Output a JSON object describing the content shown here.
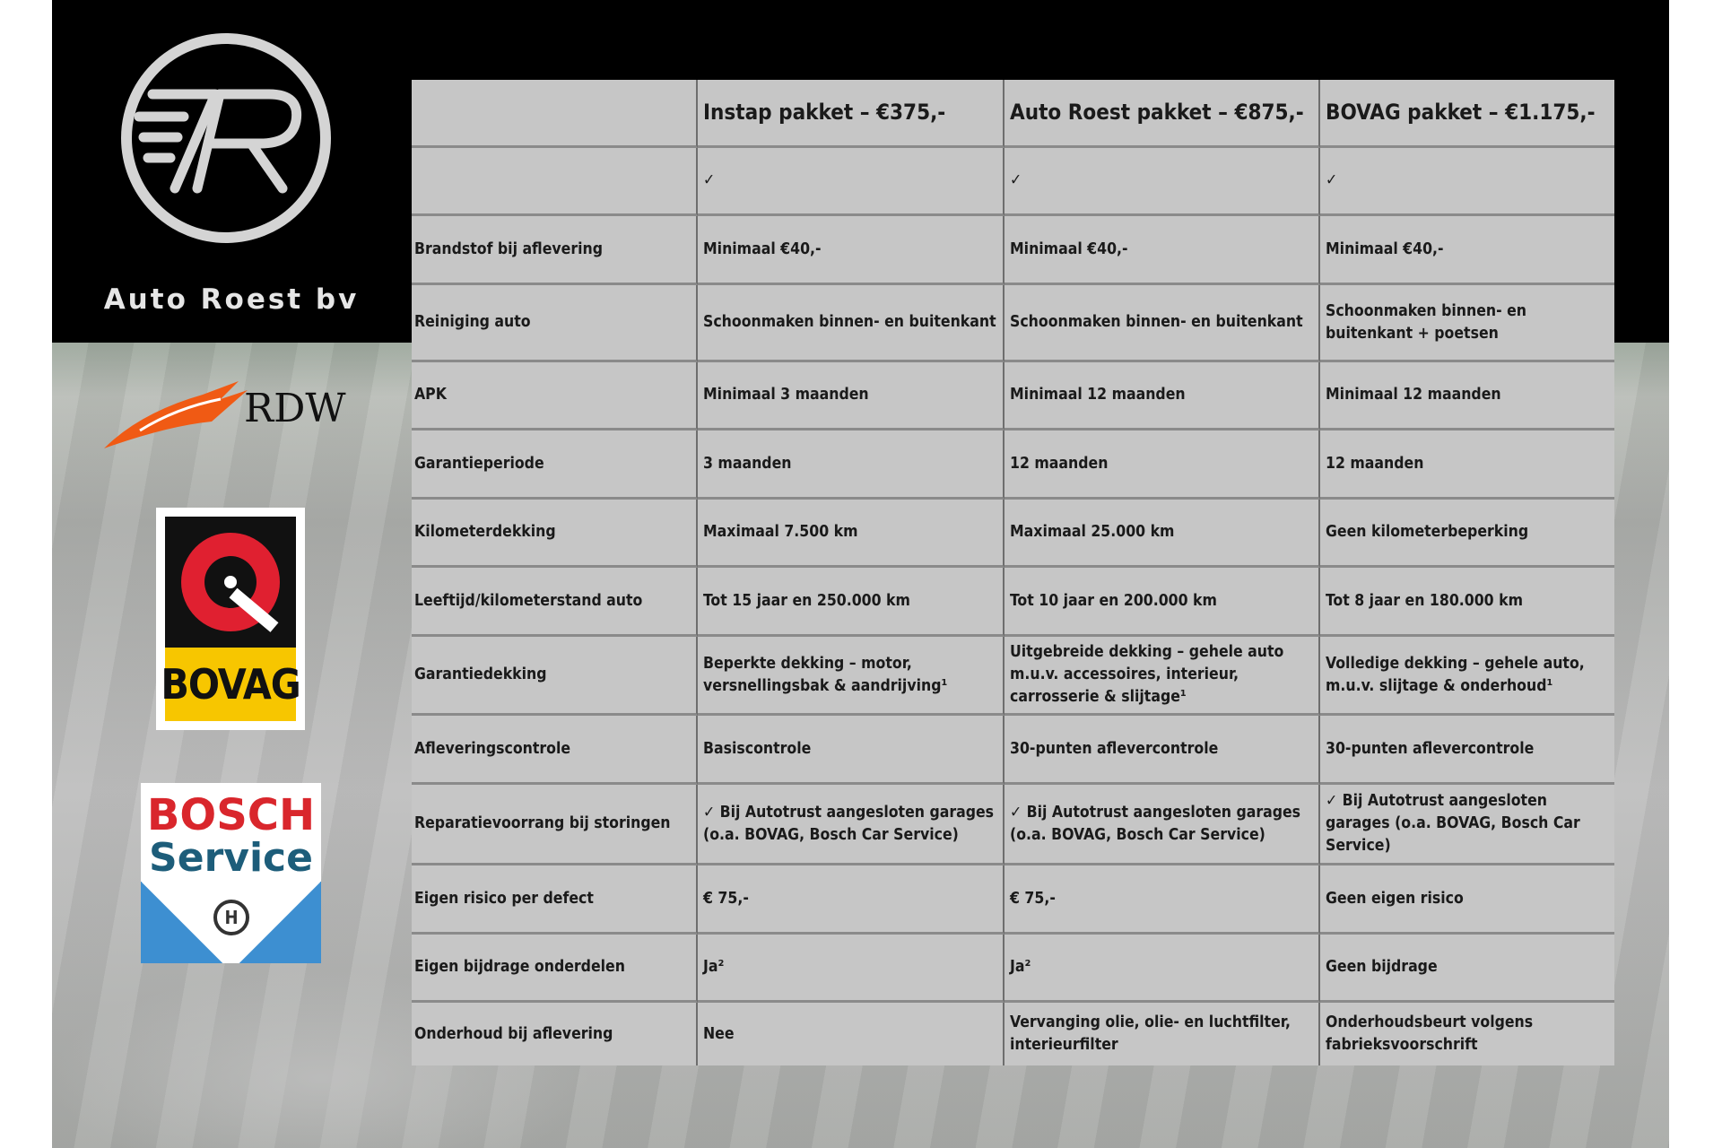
{
  "brand": {
    "name": "Auto Roest bv",
    "logo_letters": "7R"
  },
  "partners": {
    "rdw": "RDW",
    "bovag": "BOVAG",
    "bosch_line1": "BOSCH",
    "bosch_line2": "Service"
  },
  "colors": {
    "table_bg": "#c6c6c6",
    "header_bg": "#000000",
    "bovag_yellow": "#f7c600",
    "bovag_red": "#e02030",
    "bosch_red": "#d9262c",
    "bosch_blue": "#3d8fd1",
    "rdw_orange": "#f05a14"
  },
  "table": {
    "headers": [
      "",
      "Instap pakket – €375,-",
      "Auto Roest pakket – €875,-",
      "BOVAG pakket – €1.175,-"
    ],
    "rows": [
      [
        "",
        "✓",
        "✓",
        "✓"
      ],
      [
        "Brandstof bij aflevering",
        "Minimaal €40,-",
        "Minimaal €40,-",
        "Minimaal €40,-"
      ],
      [
        "Reiniging auto",
        "Schoonmaken binnen- en buitenkant",
        "Schoonmaken binnen- en buitenkant",
        "Schoonmaken binnen- en buitenkant + poetsen"
      ],
      [
        "APK",
        "Minimaal 3 maanden",
        "Minimaal 12 maanden",
        "Minimaal 12 maanden"
      ],
      [
        "Garantieperiode",
        "3 maanden",
        "12 maanden",
        "12 maanden"
      ],
      [
        "Kilometerdekking",
        "Maximaal 7.500 km",
        "Maximaal 25.000 km",
        "Geen kilometerbeperking"
      ],
      [
        "Leeftijd/kilometerstand auto",
        "Tot 15 jaar en 250.000 km",
        "Tot 10 jaar en 200.000 km",
        "Tot 8 jaar en 180.000 km"
      ],
      [
        "Garantiedekking",
        "Beperkte dekking – motor, versnellingsbak & aandrijving¹",
        "Uitgebreide dekking – gehele auto m.u.v. accessoires, interieur, carrosserie & slijtage¹",
        "Volledige dekking – gehele auto, m.u.v. slijtage & onderhoud¹"
      ],
      [
        "Afleveringscontrole",
        "Basiscontrole",
        "30-punten aflevercontrole",
        "30-punten aflevercontrole"
      ],
      [
        "Reparatievoorrang bij storingen",
        "✓ Bij Autotrust aangesloten garages (o.a. BOVAG, Bosch Car Service)",
        "✓ Bij Autotrust aangesloten garages (o.a. BOVAG, Bosch Car Service)",
        "✓ Bij Autotrust aangesloten garages (o.a. BOVAG, Bosch Car Service)"
      ],
      [
        "Eigen risico per defect",
        "€ 75,-",
        "€ 75,-",
        "Geen eigen risico"
      ],
      [
        "Eigen bijdrage onderdelen",
        "Ja²",
        "Ja²",
        "Geen bijdrage"
      ],
      [
        "Onderhoud bij aflevering",
        "Nee",
        "Vervanging olie, olie- en luchtfilter, interieurfilter",
        "Onderhoudsbeurt volgens fabrieksvoorschrift"
      ]
    ]
  }
}
